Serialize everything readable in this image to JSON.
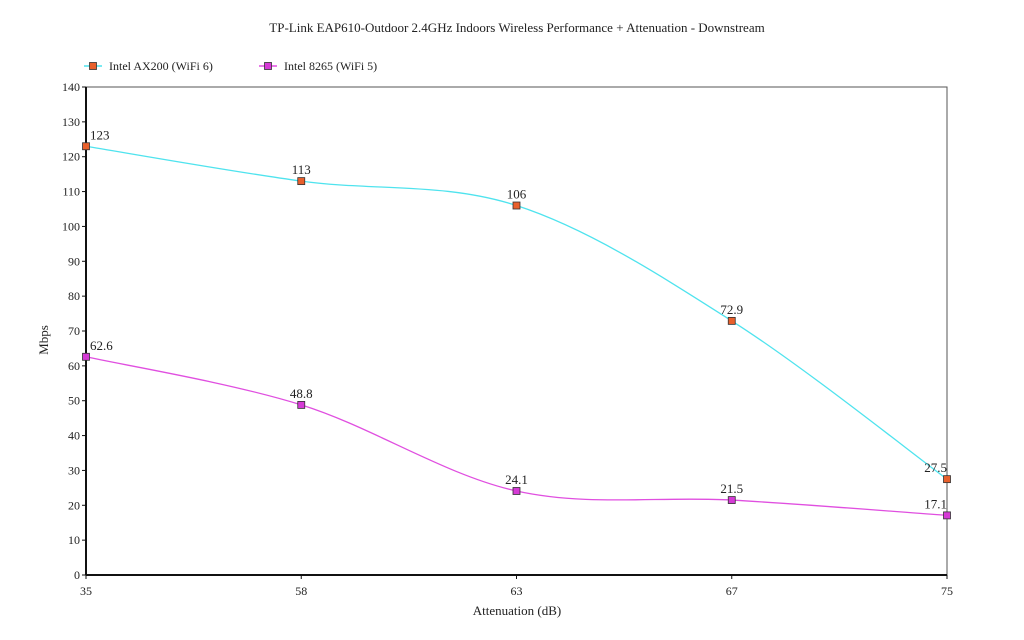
{
  "chart_data": {
    "type": "line",
    "title": "TP-Link EAP610-Outdoor 2.4GHz Indoors Wireless Performance + Attenuation - Downstream",
    "xlabel": "Attenuation (dB)",
    "ylabel": "Mbps",
    "categories": [
      "35",
      "58",
      "63",
      "67",
      "75"
    ],
    "ylim": [
      0,
      140
    ],
    "yticks": [
      0,
      10,
      20,
      30,
      40,
      50,
      60,
      70,
      80,
      90,
      100,
      110,
      120,
      130,
      140
    ],
    "grid": false,
    "legend": "top-left",
    "series": [
      {
        "name": "Intel AX200 (WiFi 6)",
        "values": [
          123,
          113,
          106,
          72.9,
          27.5
        ],
        "labels": [
          "123",
          "113",
          "106",
          "72.9",
          "27.5"
        ],
        "line_color": "#4fe3ee",
        "marker_color": "#e8602c"
      },
      {
        "name": "Intel 8265 (WiFi 5)",
        "values": [
          62.6,
          48.8,
          24.1,
          21.5,
          17.1
        ],
        "labels": [
          "62.6",
          "48.8",
          "24.1",
          "21.5",
          "17.1"
        ],
        "line_color": "#e04fe0",
        "marker_color": "#d63ad6"
      }
    ]
  }
}
